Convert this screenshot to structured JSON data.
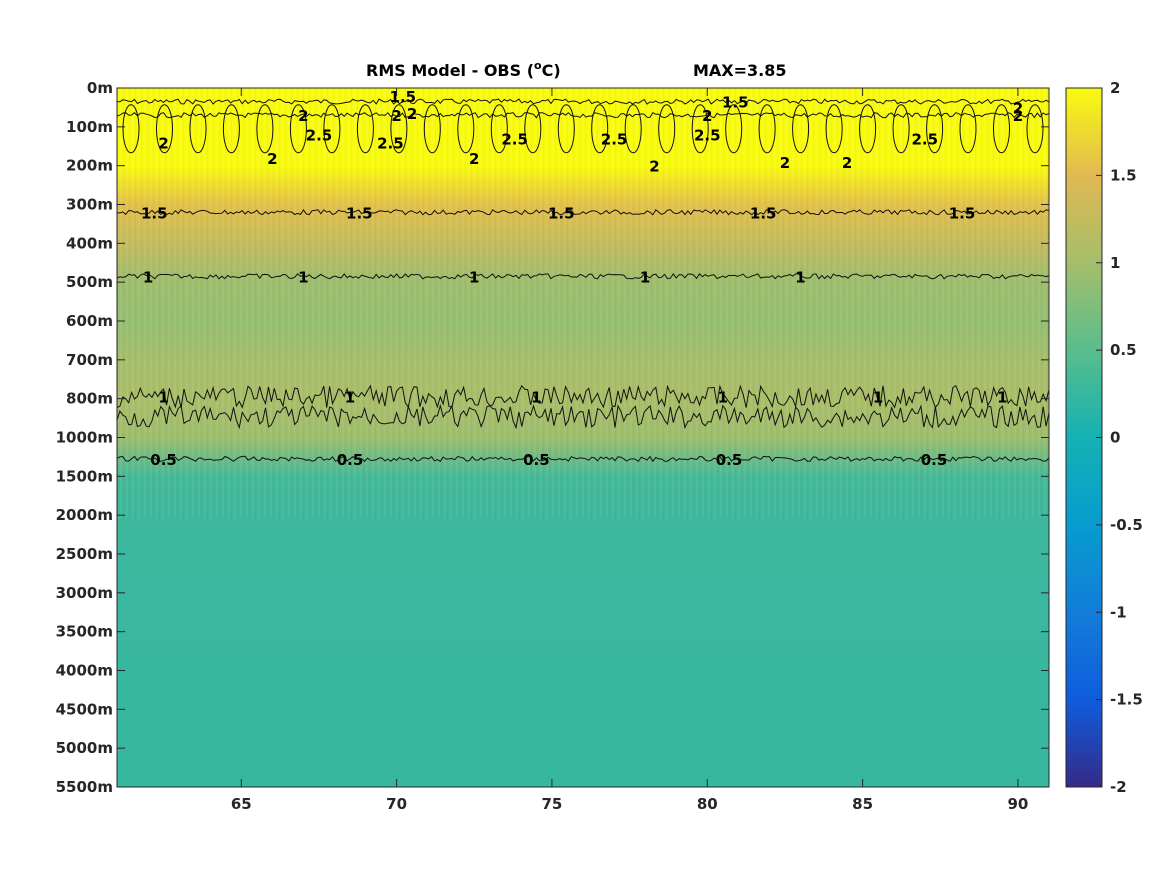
{
  "chart_data": {
    "type": "heatmap",
    "title": "RMS Model - OBS (°C)",
    "title_main": "RMS Model - OBS (",
    "title_unit_sup": "o",
    "title_unit": "C)",
    "max_label": "MAX=3.85",
    "x_ticks": [
      65,
      70,
      75,
      80,
      85,
      90
    ],
    "x_range": [
      61,
      91
    ],
    "y_ticks": [
      "0m",
      "100m",
      "200m",
      "300m",
      "400m",
      "500m",
      "600m",
      "700m",
      "800m",
      "1000m",
      "1500m",
      "2000m",
      "2500m",
      "3000m",
      "3500m",
      "4000m",
      "4500m",
      "5000m",
      "5500m"
    ],
    "colorbar": {
      "ticks": [
        2,
        1.5,
        1,
        0.5,
        0,
        -0.5,
        -1,
        -1.5,
        -2
      ],
      "range": [
        -2,
        2
      ],
      "colormap": "parula"
    },
    "depth_profile": [
      {
        "depth": "0m",
        "value": 2.6
      },
      {
        "depth": "100m",
        "value": 2.3
      },
      {
        "depth": "200m",
        "value": 2.0
      },
      {
        "depth": "300m",
        "value": 1.55
      },
      {
        "depth": "400m",
        "value": 1.25
      },
      {
        "depth": "500m",
        "value": 0.95
      },
      {
        "depth": "600m",
        "value": 0.9
      },
      {
        "depth": "700m",
        "value": 1.0
      },
      {
        "depth": "800m",
        "value": 1.05
      },
      {
        "depth": "1000m",
        "value": 0.95
      },
      {
        "depth": "1500m",
        "value": 0.35
      },
      {
        "depth": "2000m",
        "value": 0.3
      },
      {
        "depth": "2500m",
        "value": 0.28
      },
      {
        "depth": "3000m",
        "value": 0.27
      },
      {
        "depth": "3500m",
        "value": 0.27
      },
      {
        "depth": "4000m",
        "value": 0.26
      },
      {
        "depth": "4500m",
        "value": 0.26
      },
      {
        "depth": "5000m",
        "value": 0.26
      },
      {
        "depth": "5500m",
        "value": 0.26
      }
    ],
    "contours": [
      {
        "level": 1.5,
        "depth_index": 0.35,
        "labels_x": [
          80.9
        ]
      },
      {
        "level": 2,
        "depth_index": 0.7,
        "labels_x": [
          67,
          70,
          80,
          90
        ]
      },
      {
        "level": 1.5,
        "depth_index": 3.2,
        "labels_x": [
          62.2,
          68.8,
          75.3,
          81.8,
          88.2
        ]
      },
      {
        "level": 1,
        "depth_index": 4.85,
        "labels_x": [
          62,
          67,
          72.5,
          78,
          83
        ]
      },
      {
        "level": 1,
        "depth_index": 7.95,
        "labels_x": [
          62.5,
          68.5,
          74.5,
          80.5,
          85.5,
          89.5
        ]
      },
      {
        "level": 0.5,
        "depth_index": 9.55,
        "labels_x": [
          62.5,
          68.5,
          74.5,
          80.7,
          87.3
        ]
      }
    ],
    "contour_labels": [
      {
        "text": "1.5",
        "x": 70.2,
        "depth_index": 0.2
      },
      {
        "text": "2",
        "x": 70.5,
        "depth_index": 0.65
      },
      {
        "text": "2",
        "x": 72.5,
        "depth_index": 1.8
      },
      {
        "text": "2",
        "x": 62.5,
        "depth_index": 1.4
      },
      {
        "text": "2",
        "x": 66,
        "depth_index": 1.8
      },
      {
        "text": "2.5",
        "x": 67.5,
        "depth_index": 1.2
      },
      {
        "text": "2.5",
        "x": 69.8,
        "depth_index": 1.4
      },
      {
        "text": "2.5",
        "x": 73.8,
        "depth_index": 1.3
      },
      {
        "text": "2.5",
        "x": 77,
        "depth_index": 1.3
      },
      {
        "text": "2",
        "x": 78.3,
        "depth_index": 2.0
      },
      {
        "text": "2.5",
        "x": 80,
        "depth_index": 1.2
      },
      {
        "text": "2",
        "x": 82.5,
        "depth_index": 1.9
      },
      {
        "text": "2",
        "x": 84.5,
        "depth_index": 1.9
      },
      {
        "text": "2.5",
        "x": 87,
        "depth_index": 1.3
      },
      {
        "text": "2",
        "x": 90,
        "depth_index": 0.5
      }
    ]
  }
}
